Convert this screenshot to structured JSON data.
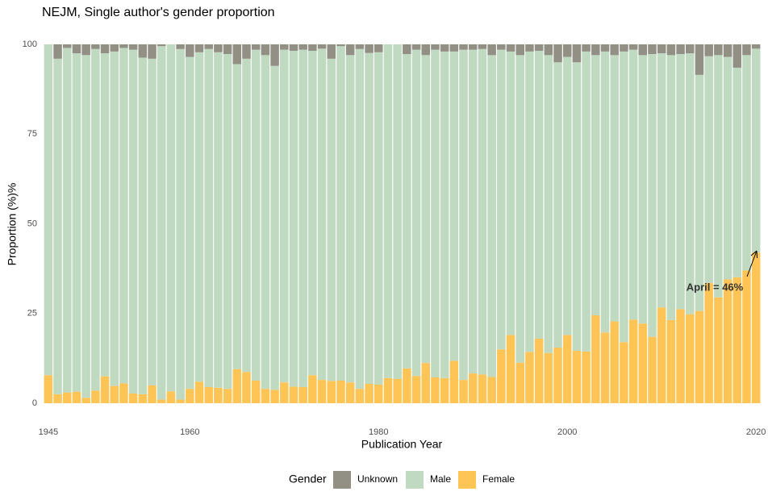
{
  "chart_data": {
    "type": "stacked_bar",
    "title": "NEJM, Single author's gender proportion",
    "x_label": "Publication Year",
    "y_label": "Proportion (%)%",
    "annotation": "April = 46%",
    "legend_title": "Gender",
    "legend": "bottom",
    "x": [
      1945,
      1946,
      1947,
      1948,
      1949,
      1950,
      1951,
      1952,
      1953,
      1954,
      1955,
      1956,
      1957,
      1958,
      1959,
      1960,
      1961,
      1962,
      1963,
      1964,
      1965,
      1966,
      1967,
      1968,
      1969,
      1970,
      1971,
      1972,
      1973,
      1974,
      1975,
      1976,
      1977,
      1978,
      1979,
      1980,
      1981,
      1982,
      1983,
      1984,
      1985,
      1986,
      1987,
      1988,
      1989,
      1990,
      1991,
      1992,
      1993,
      1994,
      1995,
      1996,
      1997,
      1998,
      1999,
      2000,
      2001,
      2002,
      2003,
      2004,
      2005,
      2006,
      2007,
      2008,
      2009,
      2010,
      2011,
      2012,
      2013,
      2014,
      2015,
      2016,
      2017,
      2018,
      2019,
      2020
    ],
    "xlim": [
      1944.5,
      2020.5
    ],
    "xticks": [
      1945,
      1960,
      1980,
      2000,
      2020
    ],
    "ylim": [
      0,
      100
    ],
    "yticks": [
      0,
      25,
      50,
      75,
      100
    ],
    "series": [
      {
        "name": "Unknown",
        "color": "#928f85",
        "values": [
          0,
          4,
          1,
          2.5,
          3,
          1.3,
          2.5,
          2,
          1,
          1.5,
          3.7,
          4,
          0.5,
          0,
          1.3,
          3.5,
          2.2,
          1.3,
          2.2,
          2.7,
          5.5,
          4,
          1.5,
          3,
          6,
          1.5,
          1.8,
          1.5,
          1.8,
          1.2,
          4,
          0.5,
          3,
          1.3,
          2.4,
          2.2,
          0,
          0,
          2.7,
          1.5,
          3,
          1.5,
          2,
          2,
          1.5,
          1.5,
          1.3,
          3,
          1.5,
          2,
          3,
          2,
          1.8,
          3,
          5,
          3.5,
          5,
          2,
          3,
          2,
          3,
          2,
          1.5,
          3,
          2.7,
          2.5,
          3,
          2.7,
          2.5,
          8.5,
          3.3,
          3,
          3.5,
          6.5,
          3,
          1.2
        ]
      },
      {
        "name": "Male",
        "color": "#bfdac1",
        "values": [
          92.2,
          93.5,
          96,
          94.3,
          95.5,
          95.2,
          90,
          93.2,
          93.5,
          95.8,
          93.8,
          91,
          98.5,
          96.7,
          97.7,
          92.5,
          91.8,
          94.2,
          93.5,
          93.3,
          85,
          87.3,
          92.2,
          93,
          90.3,
          92.7,
          93.6,
          94,
          90.4,
          92.3,
          89.8,
          93.2,
          91.2,
          94.7,
          92.2,
          92.6,
          93,
          93.2,
          87.6,
          90.9,
          85.8,
          91.3,
          91,
          86.2,
          92,
          90.2,
          90.7,
          89.7,
          83.5,
          79,
          85.7,
          83.7,
          80.2,
          83,
          79.5,
          77.5,
          80.4,
          83.6,
          72.5,
          78.3,
          74.2,
          81,
          75.2,
          74.8,
          78.8,
          70.8,
          73.8,
          71.1,
          72.7,
          65.8,
          63.2,
          67.5,
          62,
          58.4,
          60,
          56.8
        ]
      },
      {
        "name": "Female",
        "color": "#fec556",
        "values": [
          7.8,
          2.5,
          3,
          3.2,
          1.5,
          3.5,
          7.5,
          4.8,
          5.5,
          2.7,
          2.5,
          5,
          1,
          3.3,
          1,
          4,
          6,
          4.5,
          4.3,
          4,
          9.5,
          8.7,
          6.3,
          4,
          3.7,
          5.8,
          4.6,
          4.5,
          7.8,
          6.5,
          6.2,
          6.3,
          5.8,
          4,
          5.4,
          5.2,
          7,
          6.8,
          9.7,
          7.6,
          11.2,
          7.2,
          7,
          11.8,
          6.5,
          8.3,
          8,
          7.3,
          15,
          19,
          11.3,
          14.3,
          18,
          14,
          15.5,
          19,
          14.6,
          14.4,
          24.5,
          19.7,
          22.8,
          17,
          23.3,
          22.2,
          18.5,
          26.7,
          23.2,
          26.2,
          24.8,
          25.7,
          33.5,
          29.5,
          34.5,
          35.1,
          37,
          42
        ]
      }
    ]
  }
}
